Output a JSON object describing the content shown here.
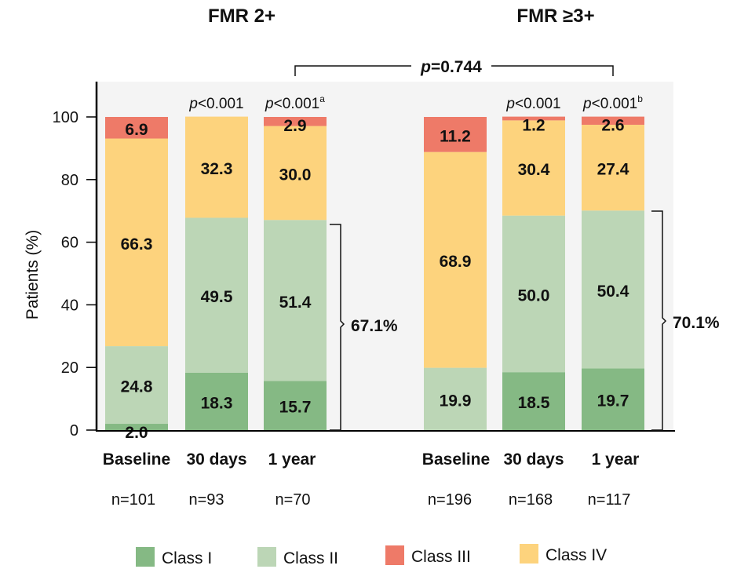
{
  "chart_data": {
    "type": "bar",
    "stacked": true,
    "ylabel": "Patients (%)",
    "ylim": [
      0,
      100
    ],
    "yticks": [
      "0",
      "20",
      "40",
      "60",
      "80",
      "100"
    ],
    "colors": {
      "Class I": "#85b984",
      "Class II": "#bcd6b6",
      "Class III": "#ee7a68",
      "Class IV": "#fdd37d",
      "background": "#f4f4f4"
    },
    "legend": [
      "Class I",
      "Class II",
      "Class III",
      "Class IV"
    ],
    "legend_position": "bottom",
    "comparison": "p=0.744",
    "comparison_prefix": "p",
    "comparison_value": "=0.744",
    "groups": [
      {
        "title": "FMR 2+",
        "categories": [
          "Baseline",
          "30 days",
          "1 year"
        ],
        "n": [
          "n=101",
          "n=93",
          "n=70"
        ],
        "pvalues": [
          "",
          "p<0.001",
          "p<0.001a"
        ],
        "pvalue_parts": [
          null,
          {
            "p": "p",
            "rest": "<0.001",
            "sup": ""
          },
          {
            "p": "p",
            "rest": "<0.001",
            "sup": "a"
          }
        ],
        "series": [
          {
            "name": "Class I",
            "values": [
              2.0,
              18.3,
              15.7
            ]
          },
          {
            "name": "Class II",
            "values": [
              24.8,
              49.5,
              51.4
            ]
          },
          {
            "name": "Class IV",
            "values": [
              66.3,
              32.3,
              30.0
            ]
          },
          {
            "name": "Class III",
            "values": [
              6.9,
              0,
              2.9
            ]
          }
        ],
        "bracket_label": "67.1%"
      },
      {
        "title": "FMR ≥3+",
        "categories": [
          "Baseline",
          "30 days",
          "1 year"
        ],
        "n": [
          "n=196",
          "n=168",
          "n=117"
        ],
        "pvalues": [
          "",
          "p<0.001",
          "p<0.001b"
        ],
        "pvalue_parts": [
          null,
          {
            "p": "p",
            "rest": "<0.001",
            "sup": ""
          },
          {
            "p": "p",
            "rest": "<0.001",
            "sup": "b"
          }
        ],
        "series": [
          {
            "name": "Class I",
            "values": [
              0,
              18.5,
              19.7
            ]
          },
          {
            "name": "Class II",
            "values": [
              19.9,
              50.0,
              50.4
            ]
          },
          {
            "name": "Class IV",
            "values": [
              68.9,
              30.4,
              27.4
            ]
          },
          {
            "name": "Class III",
            "values": [
              11.2,
              1.2,
              2.6
            ]
          }
        ],
        "bracket_label": "70.1%"
      }
    ]
  }
}
